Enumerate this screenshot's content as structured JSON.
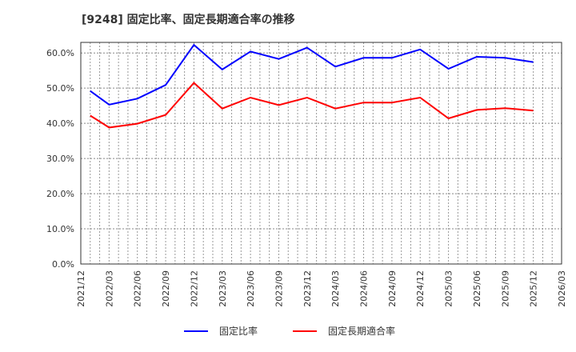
{
  "title": "[9248]  固定比率、固定長期適合率の推移",
  "legend": [
    {
      "label": "固定比率",
      "color": "#0000ff"
    },
    {
      "label": "固定長期適合率",
      "color": "#ff0000"
    }
  ],
  "chart_data": {
    "type": "line",
    "title": "[9248] 固定比率、固定長期適合率の推移",
    "xlabel": "",
    "ylabel": "",
    "ylim": [
      0,
      63
    ],
    "yticks": [
      "0.0%",
      "10.0%",
      "20.0%",
      "30.0%",
      "40.0%",
      "50.0%",
      "60.0%"
    ],
    "ytick_values": [
      0,
      10,
      20,
      30,
      40,
      50,
      60
    ],
    "xticks": [
      "2021/12",
      "2022/03",
      "2022/06",
      "2022/09",
      "2022/12",
      "2023/03",
      "2023/06",
      "2023/09",
      "2023/12",
      "2024/03",
      "2024/06",
      "2024/09",
      "2024/12",
      "2025/03",
      "2025/06",
      "2025/09",
      "2025/12",
      "2026/03"
    ],
    "grid": true,
    "legend_position": "bottom",
    "x": [
      "2022/01",
      "2022/03",
      "2022/06",
      "2022/09",
      "2022/12",
      "2023/03",
      "2023/06",
      "2023/09",
      "2023/12",
      "2024/03",
      "2024/06",
      "2024/09",
      "2024/12",
      "2025/03",
      "2025/06",
      "2025/09",
      "2025/12"
    ],
    "x_month_index": [
      1,
      3,
      6,
      9,
      12,
      15,
      18,
      21,
      24,
      27,
      30,
      33,
      36,
      39,
      42,
      45,
      48
    ],
    "series": [
      {
        "name": "固定比率",
        "color": "#0000ff",
        "values": [
          49.2,
          45.3,
          47.0,
          50.9,
          62.3,
          55.3,
          60.4,
          58.3,
          61.5,
          56.1,
          58.6,
          58.6,
          61.0,
          55.5,
          58.9,
          58.6,
          57.4
        ]
      },
      {
        "name": "固定長期適合率",
        "color": "#ff0000",
        "values": [
          42.2,
          38.8,
          39.9,
          42.4,
          51.5,
          44.2,
          47.3,
          45.2,
          47.3,
          44.2,
          45.9,
          45.9,
          47.3,
          41.4,
          43.8,
          44.3,
          43.6
        ]
      }
    ]
  }
}
